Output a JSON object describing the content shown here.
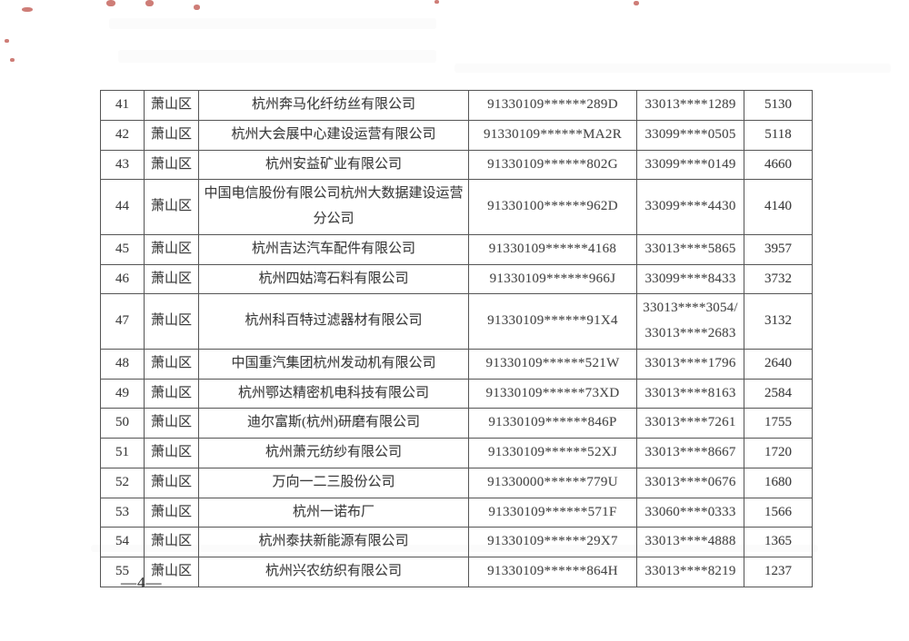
{
  "page": {
    "number_label": "—4—"
  },
  "artifact_color": "#b survives",
  "colors": {
    "artifact_red": "#b3372e",
    "table_border": "#555555",
    "text": "#3c3c3c"
  },
  "table": {
    "rows": [
      {
        "no": "41",
        "district": "萧山区",
        "company": "杭州奔马化纤纺丝有限公司",
        "credit_code": "91330109******289D",
        "insurance_code": "33013****1289",
        "count": "5130"
      },
      {
        "no": "42",
        "district": "萧山区",
        "company": "杭州大会展中心建设运营有限公司",
        "credit_code": "91330109******MA2R",
        "insurance_code": "33099****0505",
        "count": "5118"
      },
      {
        "no": "43",
        "district": "萧山区",
        "company": "杭州安益矿业有限公司",
        "credit_code": "91330109******802G",
        "insurance_code": "33099****0149",
        "count": "4660"
      },
      {
        "no": "44",
        "district": "萧山区",
        "company": "中国电信股份有限公司杭州大数据建设运营分公司",
        "credit_code": "91330100******962D",
        "insurance_code": "33099****4430",
        "count": "4140"
      },
      {
        "no": "45",
        "district": "萧山区",
        "company": "杭州吉达汽车配件有限公司",
        "credit_code": "91330109******4168",
        "insurance_code": "33013****5865",
        "count": "3957"
      },
      {
        "no": "46",
        "district": "萧山区",
        "company": "杭州四姑湾石料有限公司",
        "credit_code": "91330109******966J",
        "insurance_code": "33099****8433",
        "count": "3732"
      },
      {
        "no": "47",
        "district": "萧山区",
        "company": "杭州科百特过滤器材有限公司",
        "credit_code": "91330109******91X4",
        "insurance_code": "33013****3054/\n33013****2683",
        "count": "3132"
      },
      {
        "no": "48",
        "district": "萧山区",
        "company": "中国重汽集团杭州发动机有限公司",
        "credit_code": "91330109******521W",
        "insurance_code": "33013****1796",
        "count": "2640"
      },
      {
        "no": "49",
        "district": "萧山区",
        "company": "杭州鄂达精密机电科技有限公司",
        "credit_code": "91330109******73XD",
        "insurance_code": "33013****8163",
        "count": "2584"
      },
      {
        "no": "50",
        "district": "萧山区",
        "company": "迪尔富斯(杭州)研磨有限公司",
        "credit_code": "91330109******846P",
        "insurance_code": "33013****7261",
        "count": "1755"
      },
      {
        "no": "51",
        "district": "萧山区",
        "company": "杭州萧元纺纱有限公司",
        "credit_code": "91330109******52XJ",
        "insurance_code": "33013****8667",
        "count": "1720"
      },
      {
        "no": "52",
        "district": "萧山区",
        "company": "万向一二三股份公司",
        "credit_code": "91330000******779U",
        "insurance_code": "33013****0676",
        "count": "1680"
      },
      {
        "no": "53",
        "district": "萧山区",
        "company": "杭州一诺布厂",
        "credit_code": "91330109******571F",
        "insurance_code": "33060****0333",
        "count": "1566"
      },
      {
        "no": "54",
        "district": "萧山区",
        "company": "杭州泰扶新能源有限公司",
        "credit_code": "91330109******29X7",
        "insurance_code": "33013****4888",
        "count": "1365"
      },
      {
        "no": "55",
        "district": "萧山区",
        "company": "杭州兴农纺织有限公司",
        "credit_code": "91330109******864H",
        "insurance_code": "33013****8219",
        "count": "1237"
      }
    ]
  }
}
